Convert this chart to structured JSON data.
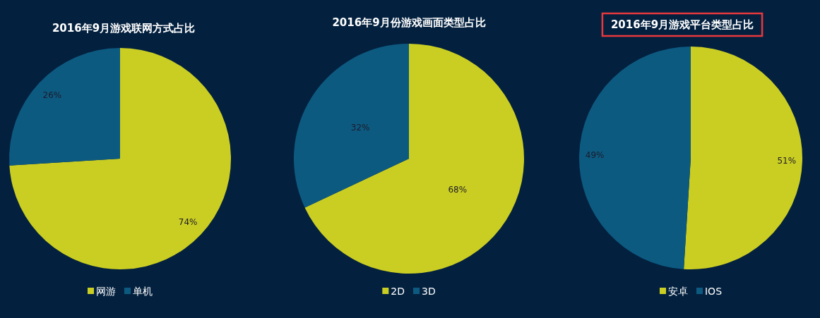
{
  "chart_data": [
    {
      "type": "pie",
      "title": "2016年9月游戏联网方式占比",
      "categories": [
        "网游",
        "单机"
      ],
      "values": [
        74,
        26
      ],
      "value_labels": [
        "74%",
        "26%"
      ],
      "colors": [
        "#cbce22",
        "#0d5a81"
      ],
      "legend": "bottom"
    },
    {
      "type": "pie",
      "title": "2016年9月份游戏画面类型占比",
      "categories": [
        "2D",
        "3D"
      ],
      "values": [
        68,
        32
      ],
      "value_labels": [
        "68%",
        "32%"
      ],
      "colors": [
        "#cbce22",
        "#0d5a81"
      ],
      "legend": "bottom"
    },
    {
      "type": "pie",
      "title": "2016年9月游戏平台类型占比",
      "categories": [
        "安卓",
        "IOS"
      ],
      "values": [
        51,
        49
      ],
      "value_labels": [
        "51%",
        "49%"
      ],
      "colors": [
        "#cbce22",
        "#0d5a81"
      ],
      "legend": "bottom"
    }
  ]
}
